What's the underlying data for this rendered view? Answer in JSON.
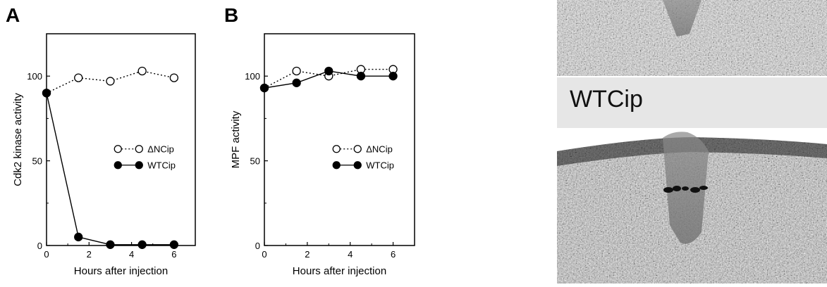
{
  "chart_data": [
    {
      "type": "line",
      "panel_label": "A",
      "xlabel": "Hours after injection",
      "ylabel": "Cdk2 kinase activity",
      "xlim": [
        0,
        7
      ],
      "ylim": [
        0,
        125
      ],
      "xticks": [
        0,
        2,
        4,
        6
      ],
      "yticks": [
        0,
        50,
        100
      ],
      "legend_position": "right-middle",
      "series": [
        {
          "name": "ΔNCip",
          "marker": "open",
          "linestyle": "dotted",
          "x": [
            0,
            1.5,
            3,
            4.5,
            6
          ],
          "y": [
            90,
            99,
            97,
            103,
            99
          ]
        },
        {
          "name": "WTCip",
          "marker": "filled",
          "linestyle": "solid",
          "x": [
            0,
            1.5,
            3,
            4.5,
            6
          ],
          "y": [
            90,
            5,
            0.5,
            0.5,
            0.5
          ]
        }
      ]
    },
    {
      "type": "line",
      "panel_label": "B",
      "xlabel": "Hours after injection",
      "ylabel": "MPF activity",
      "xlim": [
        0,
        7
      ],
      "ylim": [
        0,
        125
      ],
      "xticks": [
        0,
        2,
        4,
        6
      ],
      "yticks": [
        0,
        50,
        100
      ],
      "legend_position": "right-middle",
      "series": [
        {
          "name": "ΔNCip",
          "marker": "open",
          "linestyle": "dotted",
          "x": [
            0,
            1.5,
            3,
            4.5,
            6
          ],
          "y": [
            93,
            103,
            100,
            104,
            104
          ]
        },
        {
          "name": "WTCip",
          "marker": "filled",
          "linestyle": "solid",
          "x": [
            0,
            1.5,
            3,
            4.5,
            6
          ],
          "y": [
            93,
            96,
            103,
            100,
            100
          ]
        }
      ]
    }
  ],
  "photo": {
    "label": "WTCip"
  }
}
